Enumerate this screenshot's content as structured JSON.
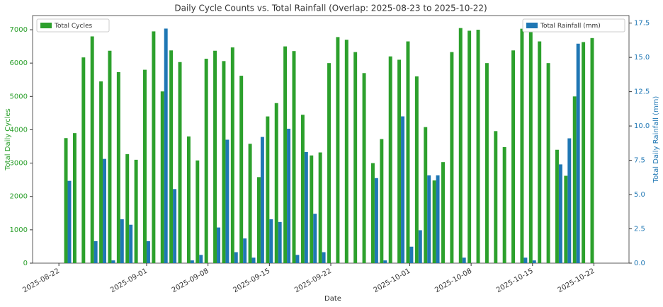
{
  "chart_data": {
    "type": "bar",
    "title": "Daily Cycle Counts vs. Total Rainfall (Overlap: 2025-08-23 to 2025-10-22)",
    "xlabel": "Date",
    "ylabel": "Total Daily Cycles",
    "y2label": "Total Daily Rainfall (mm)",
    "x": [
      "2025-08-23",
      "2025-08-24",
      "2025-08-25",
      "2025-08-26",
      "2025-08-27",
      "2025-08-28",
      "2025-08-29",
      "2025-08-30",
      "2025-08-31",
      "2025-09-01",
      "2025-09-02",
      "2025-09-03",
      "2025-09-04",
      "2025-09-05",
      "2025-09-06",
      "2025-09-07",
      "2025-09-08",
      "2025-09-09",
      "2025-09-10",
      "2025-09-11",
      "2025-09-12",
      "2025-09-13",
      "2025-09-14",
      "2025-09-15",
      "2025-09-16",
      "2025-09-17",
      "2025-09-18",
      "2025-09-19",
      "2025-09-20",
      "2025-09-21",
      "2025-09-22",
      "2025-09-23",
      "2025-09-24",
      "2025-09-25",
      "2025-09-26",
      "2025-09-27",
      "2025-09-28",
      "2025-09-29",
      "2025-09-30",
      "2025-10-01",
      "2025-10-02",
      "2025-10-03",
      "2025-10-04",
      "2025-10-05",
      "2025-10-06",
      "2025-10-07",
      "2025-10-08",
      "2025-10-09",
      "2025-10-10",
      "2025-10-11",
      "2025-10-12",
      "2025-10-13",
      "2025-10-14",
      "2025-10-15",
      "2025-10-16",
      "2025-10-17",
      "2025-10-18",
      "2025-10-19",
      "2025-10-20",
      "2025-10-21",
      "2025-10-22"
    ],
    "series": [
      {
        "name": "Total Cycles",
        "color": "#2ca02c",
        "axis": "y",
        "legend": "upper left",
        "values": [
          3750,
          3900,
          6170,
          6800,
          5450,
          6370,
          5730,
          3270,
          3100,
          5800,
          6950,
          5150,
          6380,
          6030,
          3800,
          3080,
          6130,
          6370,
          6060,
          6470,
          5620,
          3580,
          2580,
          4400,
          4800,
          6500,
          6360,
          4450,
          3230,
          3320,
          6000,
          6780,
          6700,
          6330,
          5700,
          3000,
          3720,
          6200,
          6100,
          6650,
          5600,
          4080,
          2480,
          3030,
          6330,
          7050,
          6970,
          7000,
          6000,
          3960,
          3480,
          6380,
          7030,
          7050,
          6650,
          6000,
          3400,
          2620,
          5000,
          6630,
          6750
        ]
      },
      {
        "name": "Total Rainfall (mm)",
        "color": "#1f77b4",
        "axis": "y2",
        "legend": "upper right",
        "values": [
          6.0,
          0,
          0,
          1.6,
          7.6,
          0.2,
          3.2,
          2.8,
          0,
          1.6,
          0,
          17.1,
          5.4,
          0,
          0.2,
          0.6,
          0,
          2.6,
          9.0,
          0.8,
          1.8,
          0.4,
          9.2,
          3.2,
          3.0,
          9.8,
          0.6,
          8.1,
          3.6,
          0.8,
          0,
          0,
          0,
          0,
          0,
          6.2,
          0.2,
          0,
          10.7,
          1.2,
          2.4,
          6.4,
          6.4,
          0,
          0,
          0.4,
          0,
          0,
          0,
          0,
          0,
          0,
          0.4,
          0.2,
          0,
          0,
          7.2,
          9.1,
          16.0,
          0,
          0
        ]
      }
    ],
    "xlim": [
      "2025-08-19",
      "2025-10-26"
    ],
    "xticks": [
      "2025-08-22",
      "2025-09-01",
      "2025-09-08",
      "2025-09-15",
      "2025-09-22",
      "2025-10-01",
      "2025-10-08",
      "2025-10-15",
      "2025-10-22"
    ],
    "ylim": [
      0,
      7425
    ],
    "yticks": [
      0,
      1000,
      2000,
      3000,
      4000,
      5000,
      6000,
      7000
    ],
    "y2lim": [
      0,
      18.05
    ],
    "y2ticks": [
      {
        "value": 0,
        "label": "0.0"
      },
      2.5,
      {
        "value": 5,
        "label": "5.0"
      },
      7.5,
      {
        "value": 10,
        "label": "10.0"
      },
      12.5,
      {
        "value": 15,
        "label": "15.0"
      },
      17.5
    ]
  }
}
